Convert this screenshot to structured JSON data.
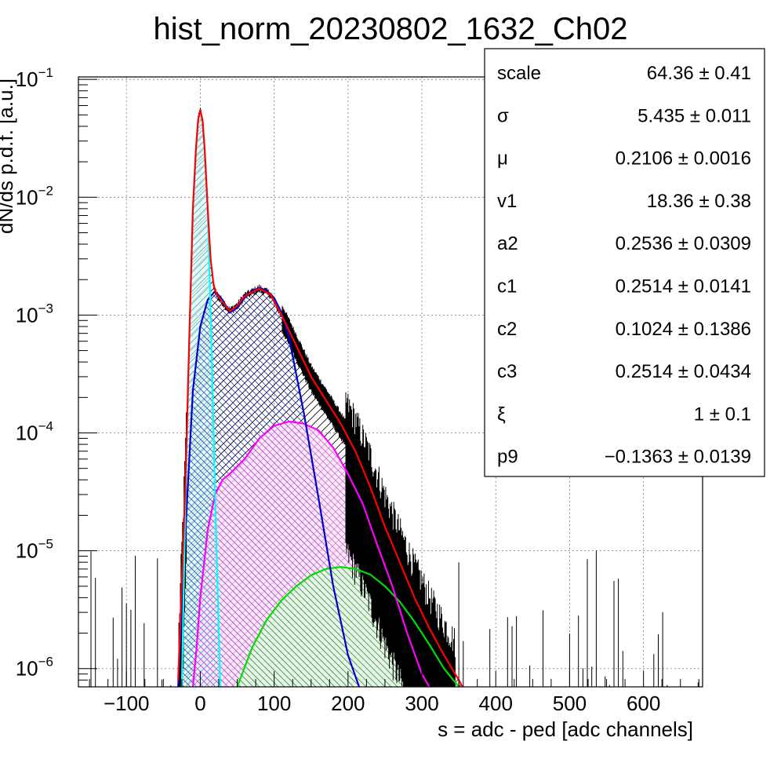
{
  "chart_data": {
    "type": "line",
    "title": "hist_norm_20230802_1632_Ch02",
    "xlabel": "s = adc - ped [adc channels]",
    "ylabel": "dN/ds p.d.f. [a.u.]",
    "xlim": [
      -165,
      680
    ],
    "ylim": [
      7e-07,
      0.105
    ],
    "yscale": "log",
    "grid": true,
    "x_ticks": [
      -100,
      0,
      100,
      200,
      300,
      400,
      500,
      600
    ],
    "x_tick_labels": [
      "−100",
      "0",
      "100",
      "200",
      "300",
      "400",
      "500",
      "600"
    ],
    "y_ticks": [
      {
        "value": 0.1,
        "base": "10",
        "exp": "−1"
      },
      {
        "value": 0.01,
        "base": "10",
        "exp": "−2"
      },
      {
        "value": 0.001,
        "base": "10",
        "exp": "−3"
      },
      {
        "value": 0.0001,
        "base": "10",
        "exp": "−4"
      },
      {
        "value": 1e-05,
        "base": "10",
        "exp": "−5"
      },
      {
        "value": 1e-06,
        "base": "10",
        "exp": "−6"
      }
    ],
    "series": [
      {
        "color": "#ff0000",
        "x": [
          -30,
          -20,
          -15,
          -10,
          -6,
          -3,
          0,
          3,
          6,
          10,
          14,
          18,
          22,
          30,
          40,
          50,
          60,
          80,
          95,
          110,
          130,
          150,
          170,
          190,
          210,
          230,
          250,
          270,
          290,
          310,
          330,
          350,
          355
        ],
        "y": [
          8e-07,
          4e-05,
          0.0006,
          0.008,
          0.025,
          0.045,
          0.055,
          0.045,
          0.025,
          0.008,
          0.003,
          0.0018,
          0.0015,
          0.0013,
          0.00108,
          0.0012,
          0.00145,
          0.00168,
          0.0015,
          0.001,
          0.00055,
          0.0003,
          0.00019,
          0.00012,
          7e-05,
          3.5e-05,
          1.6e-05,
          8e-06,
          4e-06,
          2.2e-06,
          1.3e-06,
          8e-07,
          7e-07
        ]
      },
      {
        "color": "#00ffff",
        "fill": "#e3f8f8",
        "x": [
          -25,
          -20,
          -15,
          -10,
          -6,
          -3,
          0,
          3,
          6,
          10,
          15,
          20,
          27
        ],
        "y": [
          7e-07,
          3e-05,
          0.0006,
          0.008,
          0.025,
          0.045,
          0.055,
          0.045,
          0.025,
          0.008,
          0.0006,
          3e-05,
          7e-07
        ]
      },
      {
        "color": "#0000cc",
        "fill": "#ffffff",
        "x": [
          -30,
          -20,
          -10,
          0,
          10,
          20,
          30,
          40,
          50,
          60,
          70,
          80,
          90,
          100,
          110,
          120,
          140,
          160,
          180,
          200,
          215
        ],
        "y": [
          7e-07,
          1.5e-05,
          0.00023,
          0.0008,
          0.00135,
          0.0016,
          0.00135,
          0.00105,
          0.00115,
          0.0014,
          0.0016,
          0.0017,
          0.00162,
          0.0014,
          0.00105,
          0.00065,
          0.00015,
          2.8e-05,
          5e-06,
          1.3e-06,
          7e-07
        ]
      },
      {
        "color": "#ff00ff",
        "fill": "#fae3fa",
        "x": [
          -10,
          -5,
          0,
          10,
          20,
          30,
          40,
          60,
          80,
          100,
          120,
          140,
          160,
          180,
          200,
          220,
          240,
          260,
          280,
          300,
          310
        ],
        "y": [
          7e-07,
          1.5e-06,
          4e-06,
          1.5e-05,
          3e-05,
          4e-05,
          4.5e-05,
          6e-05,
          9e-05,
          0.000115,
          0.000125,
          0.00012,
          0.000105,
          7.5e-05,
          4.5e-05,
          2.5e-05,
          1.1e-05,
          5e-06,
          2e-06,
          9e-07,
          7e-07
        ]
      },
      {
        "color": "#00dd00",
        "fill": "#e6f8e6",
        "x": [
          50,
          70,
          90,
          110,
          130,
          150,
          170,
          190,
          210,
          230,
          250,
          270,
          290,
          310,
          330,
          350
        ],
        "y": [
          7e-07,
          1.5e-06,
          2.6e-06,
          3.8e-06,
          5e-06,
          6.2e-06,
          7e-06,
          7.3e-06,
          7e-06,
          6.3e-06,
          5e-06,
          3.7e-06,
          2.5e-06,
          1.6e-06,
          1e-06,
          7e-07
        ]
      }
    ],
    "stats": [
      {
        "name": "scale",
        "value": "64.36 ± 0.41"
      },
      {
        "name": "σ",
        "value": "5.435 ± 0.011"
      },
      {
        "name": "μ",
        "value": "0.2106 ± 0.0016"
      },
      {
        "name": "v1",
        "value": "18.36 ± 0.38"
      },
      {
        "name": "a2",
        "value": "0.2536 ± 0.0309"
      },
      {
        "name": "c1",
        "value": "0.2514 ± 0.0141"
      },
      {
        "name": "c2",
        "value": "0.1024 ± 0.1386"
      },
      {
        "name": "c3",
        "value": "0.2514 ± 0.0434"
      },
      {
        "name": "ξ",
        "value": "1 ± 0.1"
      },
      {
        "name": "p9",
        "value": "−0.1363 ± 0.0139"
      }
    ]
  }
}
